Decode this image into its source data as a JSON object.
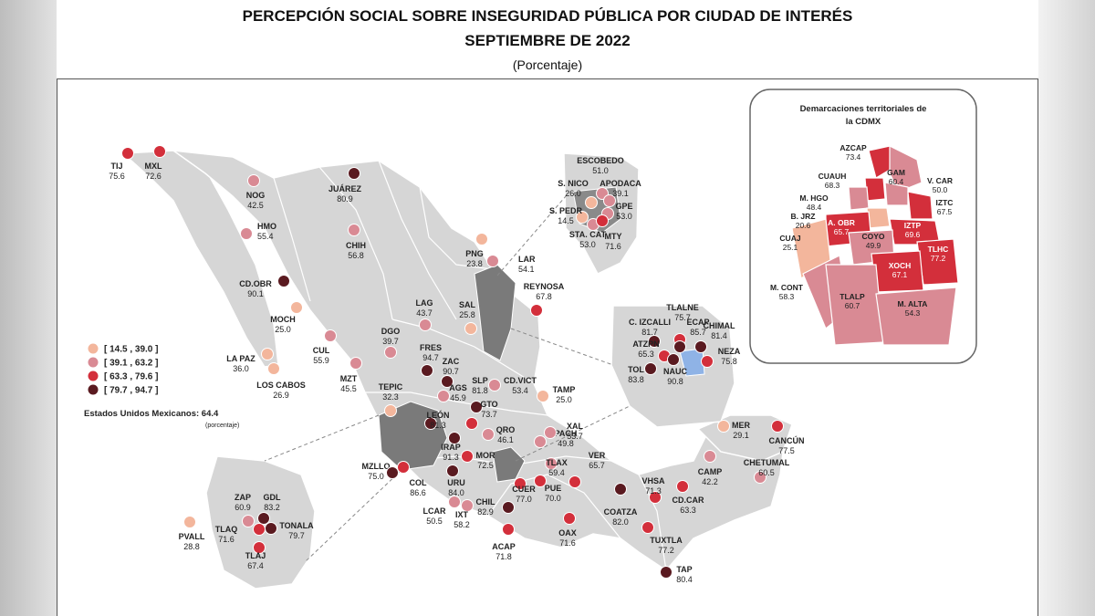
{
  "title_line1": "PERCEPCIÓN SOCIAL SOBRE INSEGURIDAD PÚBLICA POR CIUDAD DE INTERÉS",
  "title_line2": "SEPTIEMBRE DE 2022",
  "title_line3": "(Porcentaje)",
  "national": {
    "label": "Estados Unidos Mexicanos: 64.4",
    "unit": "(porcentaje)"
  },
  "legend": [
    {
      "label": "[ 14.5 , 39.0 ]",
      "color": "#f3b69c"
    },
    {
      "label": "[ 39.1 , 63.2 ]",
      "color": "#d98a94"
    },
    {
      "label": "[ 63.3 , 79.6 ]",
      "color": "#d32f3b"
    },
    {
      "label": "[ 79.7 , 94.7 ]",
      "color": "#5a1a20"
    }
  ],
  "cities": [
    {
      "name": "TIJ",
      "value": "75.6"
    },
    {
      "name": "MXL",
      "value": "72.6"
    },
    {
      "name": "NOG",
      "value": "42.5"
    },
    {
      "name": "JUÁREZ",
      "value": "80.9"
    },
    {
      "name": "HMO",
      "value": "55.4"
    },
    {
      "name": "CHIH",
      "value": "56.8"
    },
    {
      "name": "CD.OBR",
      "value": "90.1"
    },
    {
      "name": "MOCH",
      "value": "25.0"
    },
    {
      "name": "LA PAZ",
      "value": "36.0"
    },
    {
      "name": "LOS CABOS",
      "value": "26.9"
    },
    {
      "name": "CUL",
      "value": "55.9"
    },
    {
      "name": "MZT",
      "value": "45.5"
    },
    {
      "name": "DGO",
      "value": "39.7"
    },
    {
      "name": "LAG",
      "value": "43.7"
    },
    {
      "name": "PNG",
      "value": "23.8"
    },
    {
      "name": "LAR",
      "value": "54.1"
    },
    {
      "name": "SAL",
      "value": "25.8"
    },
    {
      "name": "REYNOSA",
      "value": "67.8"
    },
    {
      "name": "ESCOBEDO",
      "value": "51.0"
    },
    {
      "name": "S. NICO",
      "value": "26.0"
    },
    {
      "name": "APODACA",
      "value": "39.1"
    },
    {
      "name": "S. PEDR",
      "value": "14.5"
    },
    {
      "name": "GPE",
      "value": "53.0"
    },
    {
      "name": "STA. CAT",
      "value": "53.0"
    },
    {
      "name": "MTY",
      "value": "71.6"
    },
    {
      "name": "FRES",
      "value": "94.7"
    },
    {
      "name": "ZAC",
      "value": "90.7"
    },
    {
      "name": "TEPIC",
      "value": "32.3"
    },
    {
      "name": "AGS",
      "value": "45.9"
    },
    {
      "name": "SLP",
      "value": "81.8"
    },
    {
      "name": "CD.VICT",
      "value": "53.4"
    },
    {
      "name": "TAMP",
      "value": "25.0"
    },
    {
      "name": "LEÓN",
      "value": "81.3"
    },
    {
      "name": "GTO",
      "value": "73.7"
    },
    {
      "name": "QRO",
      "value": "46.1"
    },
    {
      "name": "IRAP",
      "value": "91.3"
    },
    {
      "name": "PACH",
      "value": "49.8"
    },
    {
      "name": "XAL",
      "value": "53.7"
    },
    {
      "name": "MOR",
      "value": "72.5"
    },
    {
      "name": "TLAX",
      "value": "59.4"
    },
    {
      "name": "VER",
      "value": "65.7"
    },
    {
      "name": "MZLLO",
      "value": "75.0"
    },
    {
      "name": "COL",
      "value": "86.6"
    },
    {
      "name": "URU",
      "value": "84.0"
    },
    {
      "name": "CUER",
      "value": "77.0"
    },
    {
      "name": "PUE",
      "value": "70.0"
    },
    {
      "name": "LCAR",
      "value": "50.5"
    },
    {
      "name": "IXT",
      "value": "58.2"
    },
    {
      "name": "CHIL",
      "value": "82.9"
    },
    {
      "name": "ACAP",
      "value": "71.8"
    },
    {
      "name": "OAX",
      "value": "71.6"
    },
    {
      "name": "COATZA",
      "value": "82.0"
    },
    {
      "name": "VHSA",
      "value": "71.3"
    },
    {
      "name": "CD.CAR",
      "value": "63.3"
    },
    {
      "name": "CAMP",
      "value": "42.2"
    },
    {
      "name": "MER",
      "value": "29.1"
    },
    {
      "name": "CANCÚN",
      "value": "77.5"
    },
    {
      "name": "CHETUMAL",
      "value": "60.5"
    },
    {
      "name": "TUXTLA",
      "value": "77.2"
    },
    {
      "name": "TAP",
      "value": "80.4"
    },
    {
      "name": "TLALNE",
      "value": "75.7"
    },
    {
      "name": "C. IZCALLI",
      "value": "81.7"
    },
    {
      "name": "ECAP",
      "value": "85.7"
    },
    {
      "name": "CHIMAL",
      "value": "81.4"
    },
    {
      "name": "ATZPN",
      "value": "65.3"
    },
    {
      "name": "NEZA",
      "value": "75.8"
    },
    {
      "name": "TOL",
      "value": "83.8"
    },
    {
      "name": "NAUC",
      "value": "90.8"
    },
    {
      "name": "ZAP",
      "value": "60.9"
    },
    {
      "name": "GDL",
      "value": "83.2"
    },
    {
      "name": "PVALL",
      "value": "28.8"
    },
    {
      "name": "TLAQ",
      "value": "71.6"
    },
    {
      "name": "TONALA",
      "value": "79.7"
    },
    {
      "name": "TLAJ",
      "value": "67.4"
    }
  ],
  "inset": {
    "title_line1": "Demarcaciones territoriales de",
    "title_line2": "la CDMX",
    "districts": [
      {
        "name": "AZCAP",
        "value": "73.4"
      },
      {
        "name": "GAM",
        "value": "60.4"
      },
      {
        "name": "CUAUH",
        "value": "68.3"
      },
      {
        "name": "V. CAR",
        "value": "50.0"
      },
      {
        "name": "M. HGO",
        "value": "48.4"
      },
      {
        "name": "IZTC",
        "value": "67.5"
      },
      {
        "name": "B. JRZ",
        "value": "20.6"
      },
      {
        "name": "A. OBR",
        "value": "65.7"
      },
      {
        "name": "IZTP",
        "value": "69.6"
      },
      {
        "name": "CUAJ",
        "value": "25.1"
      },
      {
        "name": "COYO",
        "value": "49.9"
      },
      {
        "name": "TLHC",
        "value": "77.2"
      },
      {
        "name": "XOCH",
        "value": "67.1"
      },
      {
        "name": "M. CONT",
        "value": "58.3"
      },
      {
        "name": "TLALP",
        "value": "60.7"
      },
      {
        "name": "M. ALTA",
        "value": "54.3"
      }
    ]
  }
}
